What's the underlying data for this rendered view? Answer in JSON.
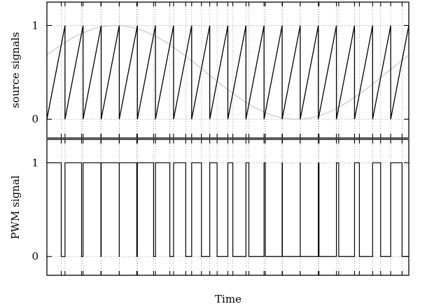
{
  "chart_data": [
    {
      "type": "line",
      "panel": "top",
      "ylabel": "source signals",
      "ylim": [
        -0.2,
        1.25
      ],
      "yticks": [
        "0",
        "1"
      ],
      "ytick_values": [
        0,
        1
      ],
      "xlim": [
        0,
        20
      ],
      "series": [
        {
          "kind": "sawtooth",
          "color": "#000000",
          "periods": 20,
          "min": 0,
          "max": 1
        },
        {
          "kind": "sine",
          "color": "#cccccc",
          "offset": 0.5,
          "amplitude": 0.5,
          "phase_offset": 0.06,
          "cycles": 1
        }
      ]
    },
    {
      "type": "line",
      "panel": "bottom",
      "ylabel": "PWM signal",
      "xlabel": "Time",
      "ylim": [
        -0.2,
        1.25
      ],
      "yticks": [
        "0",
        "1"
      ],
      "ytick_values": [
        0,
        1
      ],
      "xlim": [
        0,
        20
      ],
      "series": [
        {
          "kind": "pwm",
          "color": "#000000",
          "derived_from": "sine > sawtooth"
        }
      ]
    }
  ]
}
